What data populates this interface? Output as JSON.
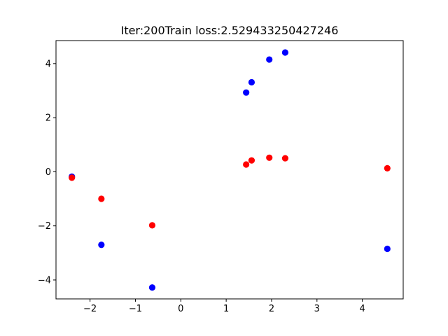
{
  "chart_data": {
    "type": "scatter",
    "title": "Iter:200Train loss:2.529433250427246",
    "xlabel": "",
    "ylabel": "",
    "xlim": [
      -2.75,
      4.9
    ],
    "ylim": [
      -4.7,
      4.85
    ],
    "x_ticks": [
      -2,
      -1,
      0,
      1,
      2,
      3,
      4
    ],
    "y_ticks": [
      -4,
      -2,
      0,
      2,
      4
    ],
    "grid": false,
    "series": [
      {
        "color": "#0000ff",
        "points": [
          {
            "x": -2.4,
            "y": -0.18
          },
          {
            "x": -1.75,
            "y": -2.7
          },
          {
            "x": -0.63,
            "y": -4.28
          },
          {
            "x": 1.44,
            "y": 2.93
          },
          {
            "x": 1.56,
            "y": 3.31
          },
          {
            "x": 1.95,
            "y": 4.15
          },
          {
            "x": 2.3,
            "y": 4.41
          },
          {
            "x": 4.55,
            "y": -2.85
          }
        ]
      },
      {
        "color": "#ff0000",
        "points": [
          {
            "x": -2.4,
            "y": -0.22
          },
          {
            "x": -1.75,
            "y": -1.0
          },
          {
            "x": -0.63,
            "y": -1.98
          },
          {
            "x": 1.44,
            "y": 0.27
          },
          {
            "x": 1.56,
            "y": 0.42
          },
          {
            "x": 1.95,
            "y": 0.52
          },
          {
            "x": 2.3,
            "y": 0.5
          },
          {
            "x": 4.55,
            "y": 0.13
          }
        ]
      }
    ]
  }
}
